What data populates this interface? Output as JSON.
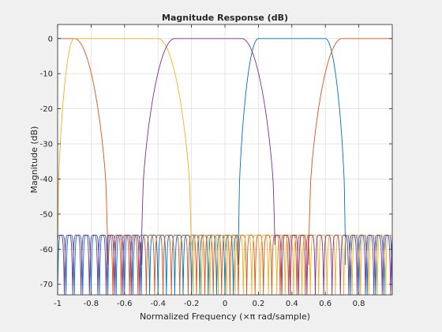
{
  "window": {
    "background": "#f0f0f0"
  },
  "chart_data": {
    "type": "line",
    "title": "Magnitude Response (dB)",
    "xlabel": "Normalized Frequency (×π rad/sample)",
    "ylabel": "Magnitude (dB)",
    "xlim": [
      -1,
      1
    ],
    "ylim": [
      -73,
      4
    ],
    "xticks": [
      -1,
      -0.8,
      -0.6,
      -0.4,
      -0.2,
      0,
      0.2,
      0.4,
      0.6,
      0.8
    ],
    "xtick_labels": [
      "-1",
      "-0.8",
      "-0.6",
      "-0.4",
      "-0.2",
      "0",
      "0.2",
      "0.4",
      "0.6",
      "0.8"
    ],
    "yticks": [
      0,
      -10,
      -20,
      -30,
      -40,
      -50,
      -60,
      -70
    ],
    "ytick_labels": [
      "0",
      "-10",
      "-20",
      "-30",
      "-40",
      "-50",
      "-60",
      "-70"
    ],
    "grid": true,
    "stopband_level_db": -56,
    "stopband_min_db": -73,
    "series": [
      {
        "color": "#0072bd",
        "passband": [
          0.2,
          0.6
        ],
        "edge_start": 0.14,
        "edge_end": 0.66,
        "stop_edges": [
          0.08,
          0.72
        ]
      },
      {
        "color": "#d95319",
        "passband": [
          0.7,
          1.0,
          -1.0,
          -0.9
        ],
        "wraps": true,
        "edge_start": 0.64,
        "edge_end": -0.84,
        "stop_edges": [
          0.5,
          -0.7
        ]
      },
      {
        "color": "#edb120",
        "passband": [
          -0.9,
          -0.4
        ],
        "edge_start": -0.96,
        "edge_end": -0.34,
        "stop_edges": [
          -1.0,
          -0.2
        ]
      },
      {
        "color": "#7e2f8e",
        "passband": [
          -0.3,
          0.1
        ],
        "edge_start": -0.36,
        "edge_end": 0.16,
        "stop_edges": [
          -0.5,
          0.3
        ]
      }
    ]
  }
}
